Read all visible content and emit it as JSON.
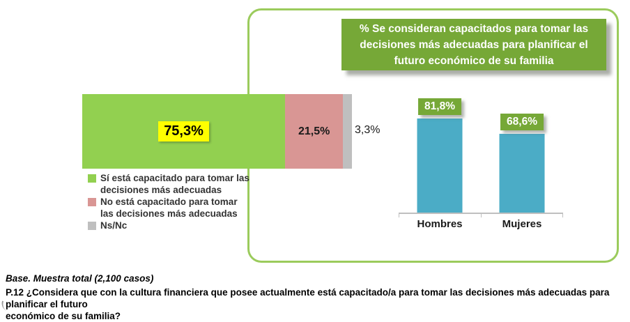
{
  "title_box": {
    "text": "% Se consideran capacitados para tomar las\ndecisiones más adecuadas para planificar el\nfuturo económico de su familia",
    "bg_color": "#76A837",
    "text_color": "#FFFFFF"
  },
  "chart_data": [
    {
      "type": "bar",
      "orientation": "horizontal",
      "stacked": true,
      "categories": [
        "Sí está capacitado para tomar las decisiones más adecuadas",
        "No está capacitado para tomar las decisiones más adecuadas",
        "Ns/Nc"
      ],
      "values": [
        75.3,
        21.5,
        3.3
      ],
      "labels": [
        "75,3%",
        "21,5%",
        "3,3%"
      ],
      "colors": [
        "#92D050",
        "#D99694",
        "#BFBFBF"
      ],
      "xlim": [
        0,
        100
      ],
      "grid": false,
      "legend_position": "bottom-left"
    },
    {
      "type": "bar",
      "orientation": "vertical",
      "categories": [
        "Hombres",
        "Mujeres"
      ],
      "values": [
        81.8,
        68.6
      ],
      "labels": [
        "81,8%",
        "68,6%"
      ],
      "color": "#4BACC6",
      "label_bg": "#76A837",
      "ylim": [
        0,
        100
      ],
      "grid": false
    }
  ],
  "legend": {
    "items": [
      {
        "label": "Sí está capacitado para tomar las\ndecisiones más adecuadas",
        "color": "#92D050"
      },
      {
        "label": "No está capacitado para tomar\nlas decisiones más adecuadas",
        "color": "#D99694"
      },
      {
        "label": "Ns/Nc",
        "color": "#BFBFBF"
      }
    ]
  },
  "footer": {
    "base_note": "Base. Muestra total (2,100 casos)",
    "question": "P.12 ¿Considera que con la cultura financiera que posee actualmente está capacitado/a para tomar las decisiones más adecuadas para planificar el futuro\neconómico de su familia?"
  },
  "accent": {
    "panel_border": "#9BCB5C",
    "highlight_yellow": "#FFFF00"
  }
}
